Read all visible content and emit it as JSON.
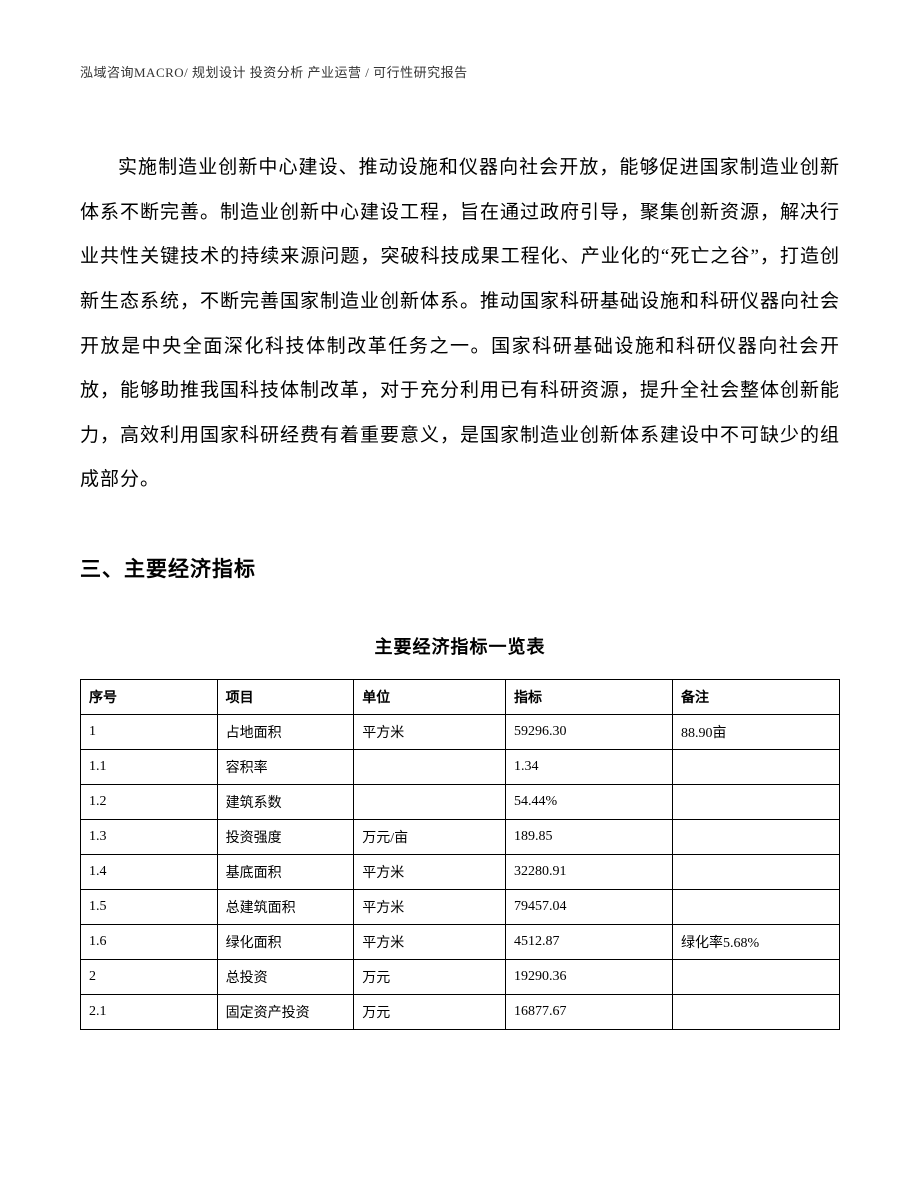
{
  "header": {
    "text": "泓域咨询MACRO/ 规划设计  投资分析  产业运营 / 可行性研究报告"
  },
  "paragraph": {
    "text": "实施制造业创新中心建设、推动设施和仪器向社会开放，能够促进国家制造业创新体系不断完善。制造业创新中心建设工程，旨在通过政府引导，聚集创新资源，解决行业共性关键技术的持续来源问题，突破科技成果工程化、产业化的“死亡之谷”，打造创新生态系统，不断完善国家制造业创新体系。推动国家科研基础设施和科研仪器向社会开放是中央全面深化科技体制改革任务之一。国家科研基础设施和科研仪器向社会开放，能够助推我国科技体制改革，对于充分利用已有科研资源，提升全社会整体创新能力，高效利用国家科研经费有着重要意义，是国家制造业创新体系建设中不可缺少的组成部分。"
  },
  "section": {
    "heading": "三、主要经济指标"
  },
  "table": {
    "title": "主要经济指标一览表",
    "columns": [
      "序号",
      "项目",
      "单位",
      "指标",
      "备注"
    ],
    "rows": [
      {
        "seq": "1",
        "item": "占地面积",
        "unit": "平方米",
        "indicator": "59296.30",
        "remark": "88.90亩"
      },
      {
        "seq": "1.1",
        "item": "容积率",
        "unit": "",
        "indicator": "1.34",
        "remark": ""
      },
      {
        "seq": "1.2",
        "item": "建筑系数",
        "unit": "",
        "indicator": "54.44%",
        "remark": ""
      },
      {
        "seq": "1.3",
        "item": "投资强度",
        "unit": "万元/亩",
        "indicator": "189.85",
        "remark": ""
      },
      {
        "seq": "1.4",
        "item": "基底面积",
        "unit": "平方米",
        "indicator": "32280.91",
        "remark": ""
      },
      {
        "seq": "1.5",
        "item": "总建筑面积",
        "unit": "平方米",
        "indicator": "79457.04",
        "remark": ""
      },
      {
        "seq": "1.6",
        "item": "绿化面积",
        "unit": "平方米",
        "indicator": "4512.87",
        "remark": "绿化率5.68%"
      },
      {
        "seq": "2",
        "item": "总投资",
        "unit": "万元",
        "indicator": "19290.36",
        "remark": ""
      },
      {
        "seq": "2.1",
        "item": "固定资产投资",
        "unit": "万元",
        "indicator": "16877.67",
        "remark": ""
      }
    ]
  }
}
